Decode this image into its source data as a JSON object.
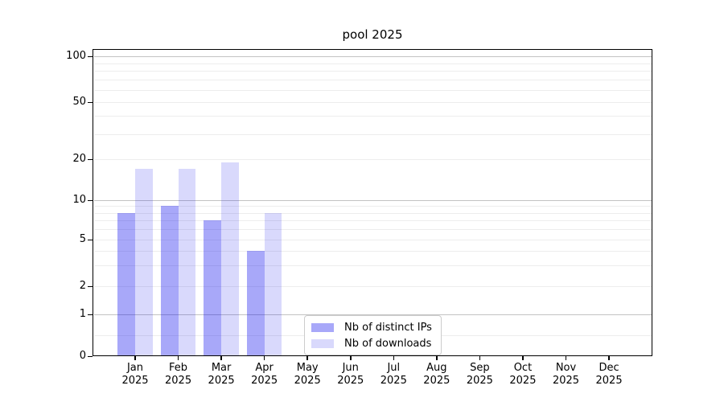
{
  "chart_data": {
    "type": "bar",
    "title": "pool 2025",
    "categories": [
      "Jan",
      "Feb",
      "Mar",
      "Apr",
      "May",
      "Jun",
      "Jul",
      "Aug",
      "Sep",
      "Oct",
      "Nov",
      "Dec"
    ],
    "category_year": "2025",
    "series": [
      {
        "name": "Nb of distinct IPs",
        "color": "rgba(0,0,238,0.34)",
        "values": [
          8,
          9,
          7,
          4,
          0,
          0,
          0,
          0,
          0,
          0,
          0,
          0
        ]
      },
      {
        "name": "Nb of downloads",
        "color": "rgba(0,0,238,0.15)",
        "values": [
          17,
          17,
          19,
          8,
          0,
          0,
          0,
          0,
          0,
          0,
          0,
          0
        ]
      }
    ],
    "yscale": "logarithmic above 1, linear between 0 and 1",
    "yticks": [
      0,
      1,
      2,
      5,
      10,
      20,
      50,
      100
    ],
    "major_gridlines": [
      1,
      10,
      100
    ],
    "minor_gridlines": [
      0.5,
      2,
      3,
      4,
      5,
      6,
      7,
      8,
      9,
      20,
      30,
      40,
      50,
      60,
      70,
      80,
      90
    ],
    "ylim": [
      0,
      110
    ],
    "grid": true,
    "legend_position": "inside lower center"
  },
  "colors": {
    "background": "#ffffff",
    "spine": "#000000",
    "major_gridline": "#c3c3c3",
    "minor_gridline": "#ededed",
    "text": "#000000",
    "legend_border": "#cccccc",
    "legend_background": "#ffffff"
  }
}
